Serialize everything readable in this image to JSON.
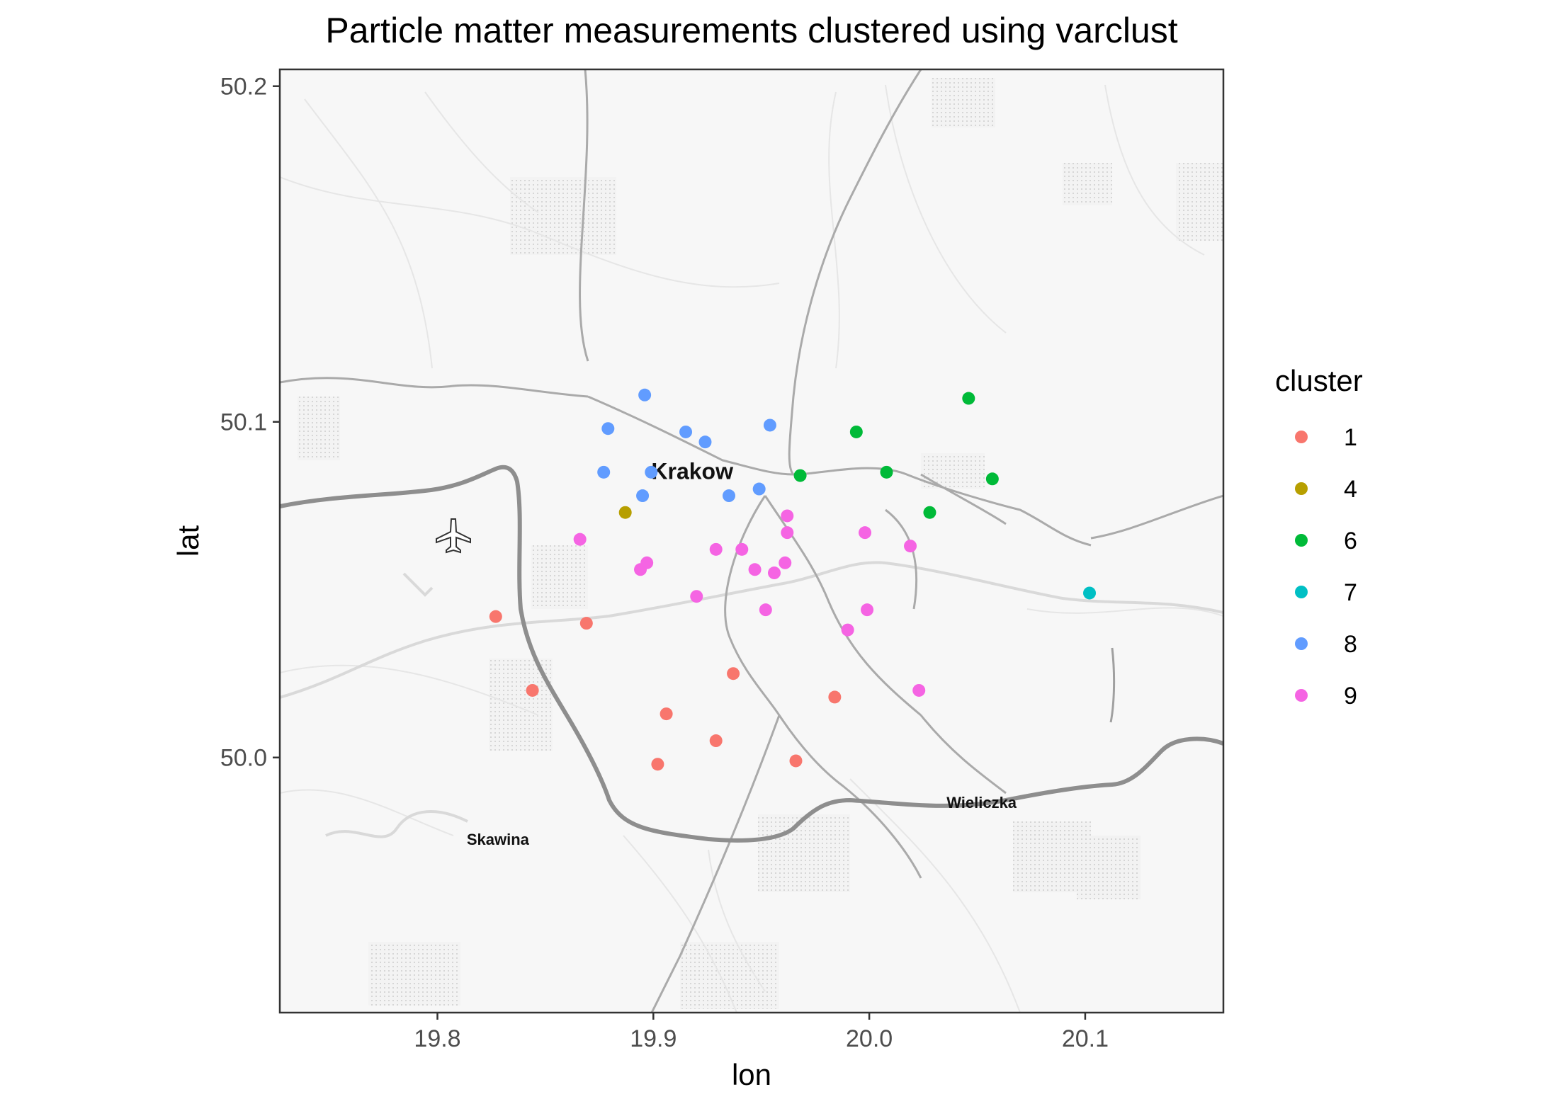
{
  "chart_data": {
    "type": "scatter",
    "title": "Particle matter measurements clustered using varclust",
    "xlabel": "lon",
    "ylabel": "lat",
    "xlim": [
      19.727,
      20.164
    ],
    "ylim": [
      49.924,
      50.205
    ],
    "xticks": [
      19.8,
      19.9,
      20.0,
      20.1
    ],
    "xtick_labels": [
      "19.8",
      "19.9",
      "20.0",
      "20.1"
    ],
    "yticks": [
      50.0,
      50.1,
      50.2
    ],
    "ytick_labels": [
      "50.0",
      "50.1",
      "50.2"
    ],
    "grid": false,
    "legend": {
      "title": "cluster",
      "placement": "right"
    },
    "basemap": {
      "places": [
        {
          "name": "Krakow",
          "lon": 19.918,
          "lat": 50.083
        },
        {
          "name": "Wieliczka",
          "lon": 20.052,
          "lat": 49.985
        },
        {
          "name": "Skawina",
          "lon": 19.828,
          "lat": 49.974
        }
      ],
      "airport_icon": "airplane-icon"
    },
    "series": [
      {
        "name": "1",
        "color": "#F8766D",
        "points": [
          {
            "x": 19.827,
            "y": 50.042
          },
          {
            "x": 19.869,
            "y": 50.04
          },
          {
            "x": 19.844,
            "y": 50.02
          },
          {
            "x": 19.937,
            "y": 50.025
          },
          {
            "x": 19.906,
            "y": 50.013
          },
          {
            "x": 19.984,
            "y": 50.018
          },
          {
            "x": 19.929,
            "y": 50.005
          },
          {
            "x": 19.902,
            "y": 49.998
          },
          {
            "x": 19.966,
            "y": 49.999
          }
        ]
      },
      {
        "name": "4",
        "color": "#B79F00",
        "points": [
          {
            "x": 19.887,
            "y": 50.073
          }
        ]
      },
      {
        "name": "6",
        "color": "#00BA38",
        "points": [
          {
            "x": 20.046,
            "y": 50.107
          },
          {
            "x": 19.994,
            "y": 50.097
          },
          {
            "x": 19.968,
            "y": 50.084
          },
          {
            "x": 20.008,
            "y": 50.085
          },
          {
            "x": 20.057,
            "y": 50.083
          },
          {
            "x": 20.028,
            "y": 50.073
          }
        ]
      },
      {
        "name": "7",
        "color": "#00BFC4",
        "points": [
          {
            "x": 20.102,
            "y": 50.049
          }
        ]
      },
      {
        "name": "8",
        "color": "#619CFF",
        "points": [
          {
            "x": 19.896,
            "y": 50.108
          },
          {
            "x": 19.879,
            "y": 50.098
          },
          {
            "x": 19.915,
            "y": 50.097
          },
          {
            "x": 19.924,
            "y": 50.094
          },
          {
            "x": 19.954,
            "y": 50.099
          },
          {
            "x": 19.877,
            "y": 50.085
          },
          {
            "x": 19.899,
            "y": 50.085
          },
          {
            "x": 19.895,
            "y": 50.078
          },
          {
            "x": 19.935,
            "y": 50.078
          },
          {
            "x": 19.949,
            "y": 50.08
          }
        ]
      },
      {
        "name": "9",
        "color": "#F564E3",
        "points": [
          {
            "x": 19.962,
            "y": 50.072
          },
          {
            "x": 19.962,
            "y": 50.067
          },
          {
            "x": 19.998,
            "y": 50.067
          },
          {
            "x": 20.019,
            "y": 50.063
          },
          {
            "x": 19.866,
            "y": 50.065
          },
          {
            "x": 19.929,
            "y": 50.062
          },
          {
            "x": 19.941,
            "y": 50.062
          },
          {
            "x": 19.897,
            "y": 50.058
          },
          {
            "x": 19.894,
            "y": 50.056
          },
          {
            "x": 19.947,
            "y": 50.056
          },
          {
            "x": 19.956,
            "y": 50.055
          },
          {
            "x": 19.961,
            "y": 50.058
          },
          {
            "x": 19.92,
            "y": 50.048
          },
          {
            "x": 19.952,
            "y": 50.044
          },
          {
            "x": 19.999,
            "y": 50.044
          },
          {
            "x": 19.99,
            "y": 50.038
          },
          {
            "x": 20.023,
            "y": 50.02
          }
        ]
      }
    ]
  }
}
